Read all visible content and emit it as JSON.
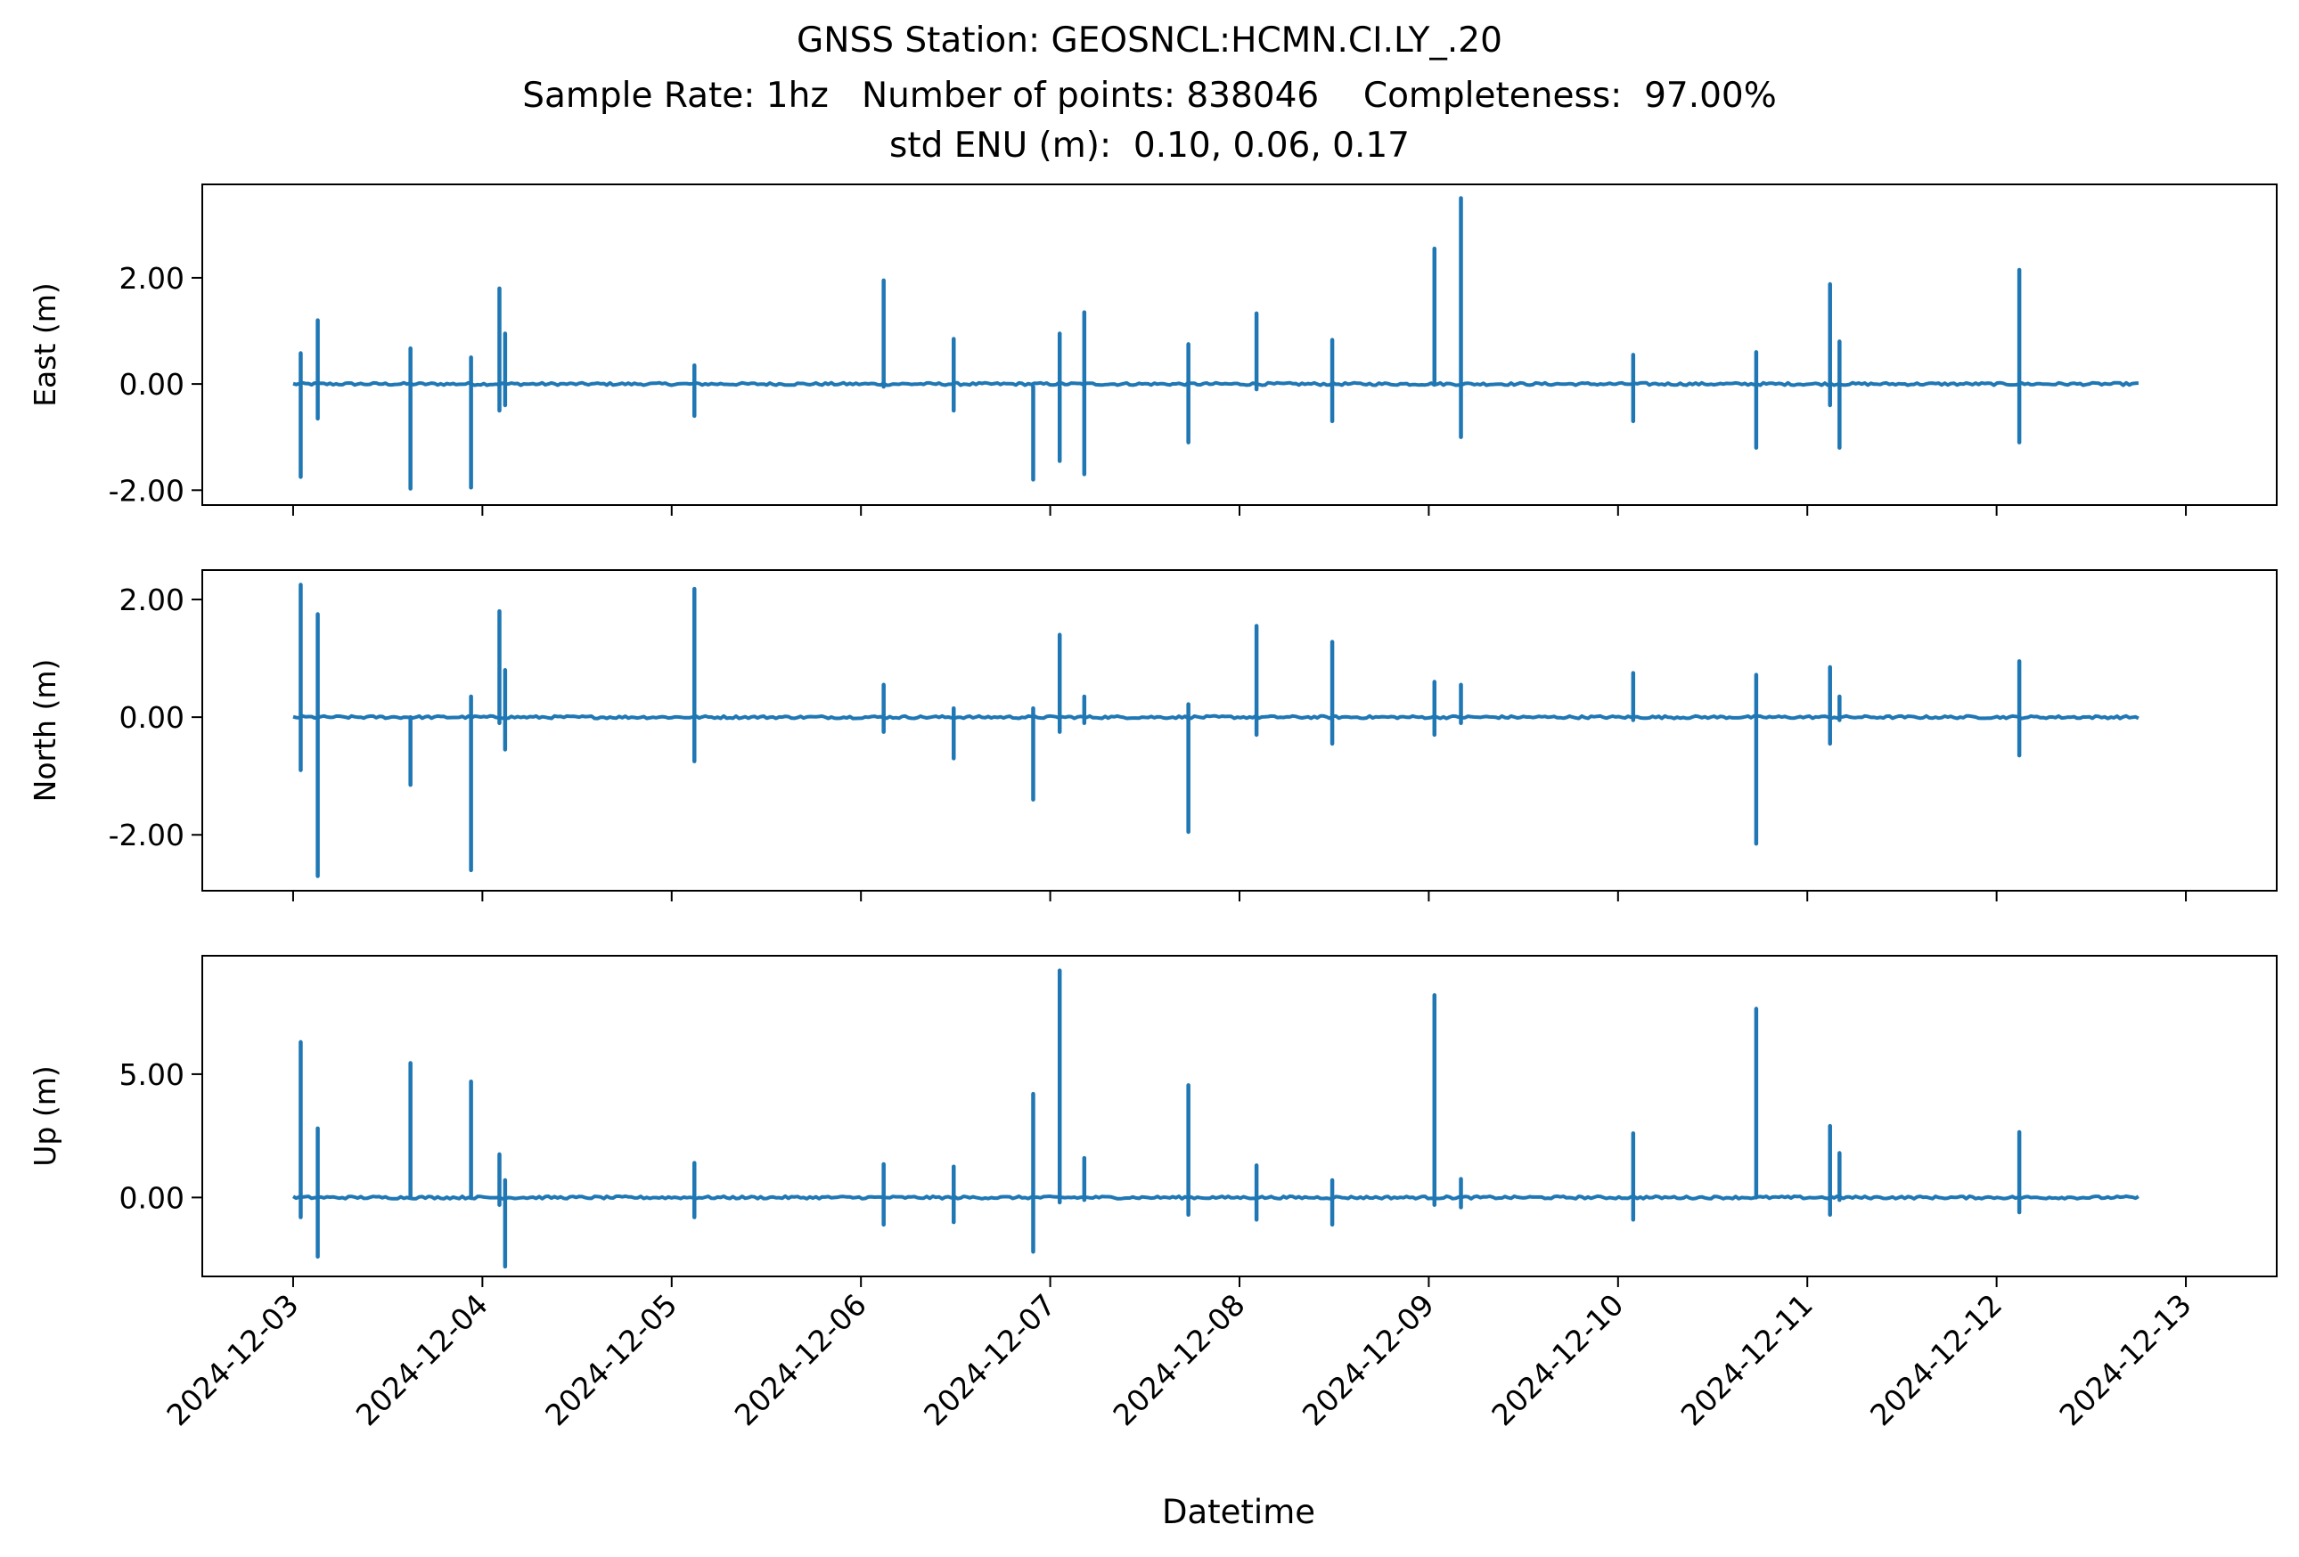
{
  "chart_data": {
    "type": "line",
    "title_lines": [
      "GNSS Station: GEOSNCL:HCMN.CI.LY_.20",
      "Sample Rate: 1hz   Number of points: 838046    Completeness:  97.00%",
      "std ENU (m):  0.10, 0.06, 0.17"
    ],
    "xlabel": "Datetime",
    "x_ticks": [
      "2024-12-03",
      "2024-12-04",
      "2024-12-05",
      "2024-12-06",
      "2024-12-07",
      "2024-12-08",
      "2024-12-09",
      "2024-12-10",
      "2024-12-11",
      "2024-12-12",
      "2024-12-13"
    ],
    "x_start": "2024-12-03",
    "x_range_days": [
      -0.48,
      10.48
    ],
    "data_range_days": [
      0.0,
      9.75
    ],
    "line_color": "#1f77b4",
    "grid": false,
    "legend": "none",
    "panels": [
      {
        "name": "East",
        "ylabel": "East (m)",
        "ylim": [
          -2.28,
          3.76
        ],
        "yticks": [
          -2,
          0,
          2
        ],
        "ytick_labels": [
          "-2.00",
          "0.00",
          "2.00"
        ],
        "series": {
          "spikes": [
            {
              "t": 0.04,
              "min": -1.75,
              "max": 0.58
            },
            {
              "t": 0.13,
              "min": -0.65,
              "max": 1.2
            },
            {
              "t": 0.62,
              "min": -1.97,
              "max": 0.67
            },
            {
              "t": 0.94,
              "min": -1.95,
              "max": 0.5
            },
            {
              "t": 1.09,
              "min": -0.5,
              "max": 1.8
            },
            {
              "t": 1.12,
              "min": -0.4,
              "max": 0.95
            },
            {
              "t": 2.12,
              "min": -0.6,
              "max": 0.35
            },
            {
              "t": 3.12,
              "min": -0.05,
              "max": 1.95
            },
            {
              "t": 3.49,
              "min": -0.5,
              "max": 0.85
            },
            {
              "t": 3.91,
              "min": -1.8,
              "max": -0.05
            },
            {
              "t": 4.05,
              "min": -1.45,
              "max": 0.95
            },
            {
              "t": 4.18,
              "min": -1.7,
              "max": 1.35
            },
            {
              "t": 4.73,
              "min": -1.1,
              "max": 0.75
            },
            {
              "t": 5.09,
              "min": -0.1,
              "max": 1.33
            },
            {
              "t": 5.49,
              "min": -0.7,
              "max": 0.83
            },
            {
              "t": 6.03,
              "min": 0.0,
              "max": 2.55
            },
            {
              "t": 6.17,
              "min": -1.0,
              "max": 3.5
            },
            {
              "t": 7.08,
              "min": -0.7,
              "max": 0.55
            },
            {
              "t": 7.73,
              "min": -1.2,
              "max": 0.6
            },
            {
              "t": 8.12,
              "min": -0.4,
              "max": 1.88
            },
            {
              "t": 8.17,
              "min": -1.2,
              "max": 0.8
            },
            {
              "t": 9.12,
              "min": -1.1,
              "max": 2.15
            }
          ]
        }
      },
      {
        "name": "North",
        "ylabel": "North (m)",
        "ylim": [
          -2.95,
          2.5
        ],
        "yticks": [
          -2,
          0,
          2
        ],
        "ytick_labels": [
          "-2.00",
          "0.00",
          "2.00"
        ],
        "series": {
          "spikes": [
            {
              "t": 0.04,
              "min": -0.9,
              "max": 2.25
            },
            {
              "t": 0.13,
              "min": -2.7,
              "max": 1.75
            },
            {
              "t": 0.62,
              "min": -1.15,
              "max": 0.0
            },
            {
              "t": 0.94,
              "min": -2.6,
              "max": 0.35
            },
            {
              "t": 1.09,
              "min": -0.1,
              "max": 1.8
            },
            {
              "t": 1.12,
              "min": -0.55,
              "max": 0.8
            },
            {
              "t": 2.12,
              "min": -0.75,
              "max": 2.18
            },
            {
              "t": 3.12,
              "min": -0.25,
              "max": 0.55
            },
            {
              "t": 3.49,
              "min": -0.7,
              "max": 0.15
            },
            {
              "t": 3.91,
              "min": -1.4,
              "max": 0.15
            },
            {
              "t": 4.05,
              "min": -0.25,
              "max": 1.4
            },
            {
              "t": 4.18,
              "min": -0.1,
              "max": 0.35
            },
            {
              "t": 4.73,
              "min": -1.95,
              "max": 0.22
            },
            {
              "t": 5.09,
              "min": -0.3,
              "max": 1.55
            },
            {
              "t": 5.49,
              "min": -0.45,
              "max": 1.28
            },
            {
              "t": 6.03,
              "min": -0.3,
              "max": 0.6
            },
            {
              "t": 6.17,
              "min": -0.1,
              "max": 0.55
            },
            {
              "t": 7.08,
              "min": -0.05,
              "max": 0.75
            },
            {
              "t": 7.73,
              "min": -2.15,
              "max": 0.72
            },
            {
              "t": 8.12,
              "min": -0.45,
              "max": 0.85
            },
            {
              "t": 8.17,
              "min": -0.05,
              "max": 0.35
            },
            {
              "t": 9.12,
              "min": -0.65,
              "max": 0.95
            }
          ]
        }
      },
      {
        "name": "Up",
        "ylabel": "Up (m)",
        "ylim": [
          -3.2,
          9.8
        ],
        "yticks": [
          0,
          5
        ],
        "ytick_labels": [
          "0.00",
          "5.00"
        ],
        "series": {
          "spikes": [
            {
              "t": 0.04,
              "min": -0.8,
              "max": 6.3
            },
            {
              "t": 0.13,
              "min": -2.4,
              "max": 2.8
            },
            {
              "t": 0.62,
              "min": 0.0,
              "max": 5.45
            },
            {
              "t": 0.94,
              "min": 0.0,
              "max": 4.7
            },
            {
              "t": 1.09,
              "min": -0.3,
              "max": 1.75
            },
            {
              "t": 1.12,
              "min": -2.8,
              "max": 0.7
            },
            {
              "t": 2.12,
              "min": -0.8,
              "max": 1.4
            },
            {
              "t": 3.12,
              "min": -1.1,
              "max": 1.35
            },
            {
              "t": 3.49,
              "min": -1.0,
              "max": 1.25
            },
            {
              "t": 3.91,
              "min": -2.2,
              "max": 4.2
            },
            {
              "t": 4.05,
              "min": -0.2,
              "max": 9.2
            },
            {
              "t": 4.18,
              "min": -0.1,
              "max": 1.6
            },
            {
              "t": 4.73,
              "min": -0.7,
              "max": 4.55
            },
            {
              "t": 5.09,
              "min": -0.9,
              "max": 1.3
            },
            {
              "t": 5.49,
              "min": -1.1,
              "max": 0.7
            },
            {
              "t": 6.03,
              "min": -0.3,
              "max": 8.2
            },
            {
              "t": 6.17,
              "min": -0.4,
              "max": 0.75
            },
            {
              "t": 7.08,
              "min": -0.9,
              "max": 2.6
            },
            {
              "t": 7.73,
              "min": 0.0,
              "max": 7.65
            },
            {
              "t": 8.12,
              "min": -0.7,
              "max": 2.9
            },
            {
              "t": 8.17,
              "min": -0.1,
              "max": 1.8
            },
            {
              "t": 9.12,
              "min": -0.6,
              "max": 2.65
            }
          ]
        }
      }
    ]
  }
}
